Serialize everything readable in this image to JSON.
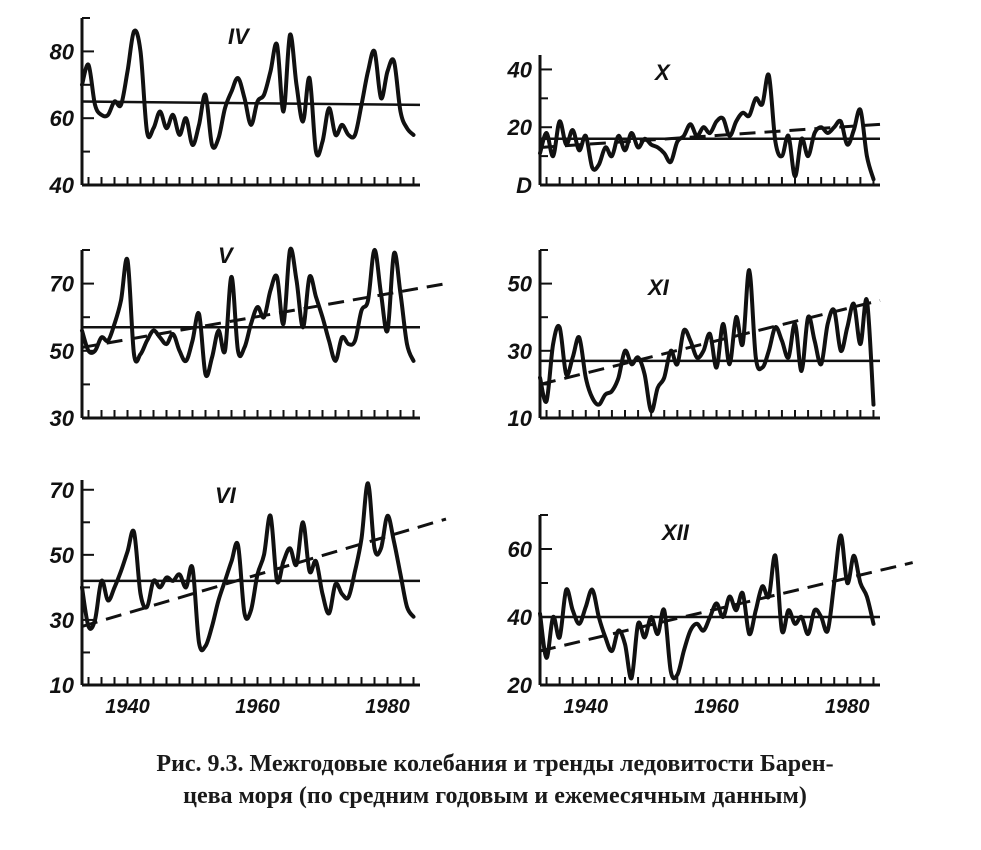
{
  "figure": {
    "caption_line1": "Рис. 9.3. Межгодовые колебания и тренды ледовитости Барен-",
    "caption_line2": "цева моря (по средним годовым и ежемесячным данным)"
  },
  "chart_data": [
    {
      "type": "line",
      "title": "IV",
      "xlim": [
        1933,
        1985
      ],
      "ylim": [
        40,
        90
      ],
      "ytick_labels": [
        "40",
        "60",
        "80"
      ],
      "yticks": [
        40,
        60,
        80
      ],
      "xtick_labels": [],
      "mean_line": [
        [
          1933,
          65
        ],
        [
          1985,
          64
        ]
      ],
      "trend_line": null,
      "series": [
        {
          "x": [
            1933,
            1934,
            1935,
            1936,
            1937,
            1938,
            1939,
            1940,
            1941,
            1942,
            1943,
            1944,
            1945,
            1946,
            1947,
            1948,
            1949,
            1950,
            1951,
            1952,
            1953,
            1954,
            1955,
            1956,
            1957,
            1958,
            1959,
            1960,
            1961,
            1962,
            1963,
            1964,
            1965,
            1966,
            1967,
            1968,
            1969,
            1970,
            1971,
            1972,
            1973,
            1974,
            1975,
            1976,
            1977,
            1978,
            1979,
            1980,
            1981,
            1982,
            1983,
            1984
          ],
          "y": [
            70,
            76,
            64,
            61,
            61,
            65,
            64,
            74,
            86,
            80,
            56,
            57,
            62,
            57,
            61,
            55,
            60,
            52,
            58,
            67,
            52,
            54,
            63,
            68,
            72,
            66,
            58,
            65,
            67,
            74,
            82,
            62,
            85,
            70,
            59,
            72,
            50,
            53,
            63,
            55,
            58,
            55,
            55,
            64,
            74,
            80,
            66,
            74,
            77,
            62,
            57,
            55
          ]
        }
      ]
    },
    {
      "type": "line",
      "title": "X",
      "xlim": [
        1933,
        1985
      ],
      "ylim": [
        0,
        45
      ],
      "ytick_labels": [
        "D",
        "20",
        "40"
      ],
      "yticks": [
        0,
        20,
        40
      ],
      "xtick_labels": [],
      "mean_line": [
        [
          1933,
          16
        ],
        [
          1985,
          16
        ]
      ],
      "trend_line": [
        [
          1933,
          13
        ],
        [
          1985,
          21
        ]
      ],
      "series": [
        {
          "x": [
            1933,
            1934,
            1935,
            1936,
            1937,
            1938,
            1939,
            1940,
            1941,
            1942,
            1943,
            1944,
            1945,
            1946,
            1947,
            1948,
            1949,
            1950,
            1951,
            1952,
            1953,
            1954,
            1955,
            1956,
            1957,
            1958,
            1959,
            1960,
            1961,
            1962,
            1963,
            1964,
            1965,
            1966,
            1967,
            1968,
            1969,
            1970,
            1971,
            1972,
            1973,
            1974,
            1975,
            1976,
            1977,
            1978,
            1979,
            1980,
            1981,
            1982,
            1983,
            1984
          ],
          "y": [
            11,
            18,
            10,
            22,
            14,
            19,
            12,
            17,
            6,
            7,
            13,
            10,
            17,
            12,
            18,
            13,
            16,
            14,
            13,
            11,
            8,
            15,
            17,
            21,
            17,
            20,
            18,
            22,
            23,
            17,
            22,
            25,
            24,
            30,
            28,
            38,
            15,
            10,
            17,
            3,
            16,
            10,
            18,
            20,
            18,
            20,
            22,
            14,
            19,
            26,
            10,
            2
          ]
        }
      ]
    },
    {
      "type": "line",
      "title": "V",
      "xlim": [
        1933,
        1985
      ],
      "ylim": [
        30,
        80
      ],
      "ytick_labels": [
        "30",
        "50",
        "70"
      ],
      "yticks": [
        30,
        50,
        70
      ],
      "xtick_labels": [],
      "mean_line": [
        [
          1933,
          57
        ],
        [
          1985,
          57
        ]
      ],
      "trend_line": [
        [
          1933,
          51
        ],
        [
          1989,
          70
        ]
      ],
      "series": [
        {
          "x": [
            1933,
            1934,
            1935,
            1936,
            1937,
            1938,
            1939,
            1940,
            1941,
            1942,
            1943,
            1944,
            1945,
            1946,
            1947,
            1948,
            1949,
            1950,
            1951,
            1952,
            1953,
            1954,
            1955,
            1956,
            1957,
            1958,
            1959,
            1960,
            1961,
            1962,
            1963,
            1964,
            1965,
            1966,
            1967,
            1968,
            1969,
            1970,
            1971,
            1972,
            1973,
            1974,
            1975,
            1976,
            1977,
            1978,
            1979,
            1980,
            1981,
            1982,
            1983,
            1984
          ],
          "y": [
            56,
            50,
            50,
            54,
            53,
            58,
            65,
            77,
            49,
            49,
            53,
            56,
            54,
            52,
            55,
            50,
            47,
            53,
            61,
            43,
            48,
            56,
            50,
            72,
            50,
            51,
            58,
            63,
            60,
            68,
            72,
            58,
            80,
            71,
            57,
            72,
            66,
            60,
            53,
            47,
            54,
            52,
            53,
            62,
            65,
            80,
            67,
            56,
            79,
            67,
            52,
            47
          ]
        }
      ]
    },
    {
      "type": "line",
      "title": "XI",
      "xlim": [
        1933,
        1985
      ],
      "ylim": [
        10,
        60
      ],
      "ytick_labels": [
        "10",
        "30",
        "50"
      ],
      "yticks": [
        10,
        30,
        50
      ],
      "xtick_labels": [],
      "mean_line": [
        [
          1933,
          27
        ],
        [
          1985,
          27
        ]
      ],
      "trend_line": [
        [
          1933,
          20
        ],
        [
          1985,
          45
        ]
      ],
      "series": [
        {
          "x": [
            1933,
            1934,
            1935,
            1936,
            1937,
            1938,
            1939,
            1940,
            1941,
            1942,
            1943,
            1944,
            1945,
            1946,
            1947,
            1948,
            1949,
            1950,
            1951,
            1952,
            1953,
            1954,
            1955,
            1956,
            1957,
            1958,
            1959,
            1960,
            1961,
            1962,
            1963,
            1964,
            1965,
            1966,
            1967,
            1968,
            1969,
            1970,
            1971,
            1972,
            1973,
            1974,
            1975,
            1976,
            1977,
            1978,
            1979,
            1980,
            1981,
            1982,
            1983,
            1984
          ],
          "y": [
            22,
            15,
            32,
            37,
            23,
            28,
            34,
            22,
            16,
            14,
            17,
            18,
            22,
            30,
            26,
            28,
            23,
            12,
            19,
            22,
            30,
            26,
            36,
            33,
            28,
            30,
            35,
            25,
            38,
            26,
            40,
            32,
            54,
            28,
            25,
            30,
            37,
            33,
            28,
            38,
            24,
            40,
            33,
            26,
            38,
            42,
            30,
            37,
            44,
            32,
            45,
            14
          ]
        }
      ]
    },
    {
      "type": "line",
      "title": "VI",
      "xlim": [
        1933,
        1985
      ],
      "ylim": [
        10,
        73
      ],
      "ytick_labels": [
        "10",
        "30",
        "50",
        "70"
      ],
      "yticks": [
        10,
        30,
        50,
        70
      ],
      "xtick_labels": [
        "1940",
        "1960",
        "1980"
      ],
      "xticks": [
        1940,
        1960,
        1980
      ],
      "mean_line": [
        [
          1933,
          42
        ],
        [
          1985,
          42
        ]
      ],
      "trend_line": [
        [
          1933,
          28
        ],
        [
          1989,
          61
        ]
      ],
      "series": [
        {
          "x": [
            1933,
            1934,
            1935,
            1936,
            1937,
            1938,
            1939,
            1940,
            1941,
            1942,
            1943,
            1944,
            1945,
            1946,
            1947,
            1948,
            1949,
            1950,
            1951,
            1952,
            1953,
            1954,
            1955,
            1956,
            1957,
            1958,
            1959,
            1960,
            1961,
            1962,
            1963,
            1964,
            1965,
            1966,
            1967,
            1968,
            1969,
            1970,
            1971,
            1972,
            1973,
            1974,
            1975,
            1976,
            1977,
            1978,
            1979,
            1980,
            1981,
            1982,
            1983,
            1984
          ],
          "y": [
            40,
            28,
            30,
            42,
            36,
            40,
            45,
            51,
            57,
            38,
            34,
            42,
            40,
            43,
            42,
            44,
            40,
            46,
            23,
            22,
            28,
            36,
            42,
            48,
            53,
            32,
            33,
            44,
            50,
            62,
            42,
            48,
            52,
            47,
            60,
            45,
            48,
            38,
            32,
            41,
            38,
            37,
            45,
            55,
            72,
            52,
            52,
            62,
            54,
            44,
            34,
            31
          ]
        }
      ]
    },
    {
      "type": "line",
      "title": "XII",
      "xlim": [
        1933,
        1985
      ],
      "ylim": [
        20,
        70
      ],
      "ytick_labels": [
        "20",
        "40",
        "60"
      ],
      "yticks": [
        20,
        40,
        60
      ],
      "xtick_labels": [
        "1940",
        "1960",
        "1980"
      ],
      "xticks": [
        1940,
        1960,
        1980
      ],
      "mean_line": [
        [
          1933,
          40
        ],
        [
          1985,
          40
        ]
      ],
      "trend_line": [
        [
          1933,
          30
        ],
        [
          1990,
          56
        ]
      ],
      "series": [
        {
          "x": [
            1933,
            1934,
            1935,
            1936,
            1937,
            1938,
            1939,
            1940,
            1941,
            1942,
            1943,
            1944,
            1945,
            1946,
            1947,
            1948,
            1949,
            1950,
            1951,
            1952,
            1953,
            1954,
            1955,
            1956,
            1957,
            1958,
            1959,
            1960,
            1961,
            1962,
            1963,
            1964,
            1965,
            1966,
            1967,
            1968,
            1969,
            1970,
            1971,
            1972,
            1973,
            1974,
            1975,
            1976,
            1977,
            1978,
            1979,
            1980,
            1981,
            1982,
            1983,
            1984
          ],
          "y": [
            41,
            28,
            40,
            34,
            48,
            42,
            38,
            43,
            48,
            40,
            34,
            30,
            36,
            32,
            22,
            38,
            34,
            40,
            35,
            42,
            24,
            23,
            30,
            36,
            38,
            36,
            40,
            44,
            40,
            46,
            42,
            47,
            35,
            42,
            49,
            46,
            58,
            36,
            42,
            38,
            40,
            35,
            42,
            40,
            36,
            50,
            64,
            50,
            58,
            50,
            46,
            38
          ]
        }
      ]
    }
  ]
}
